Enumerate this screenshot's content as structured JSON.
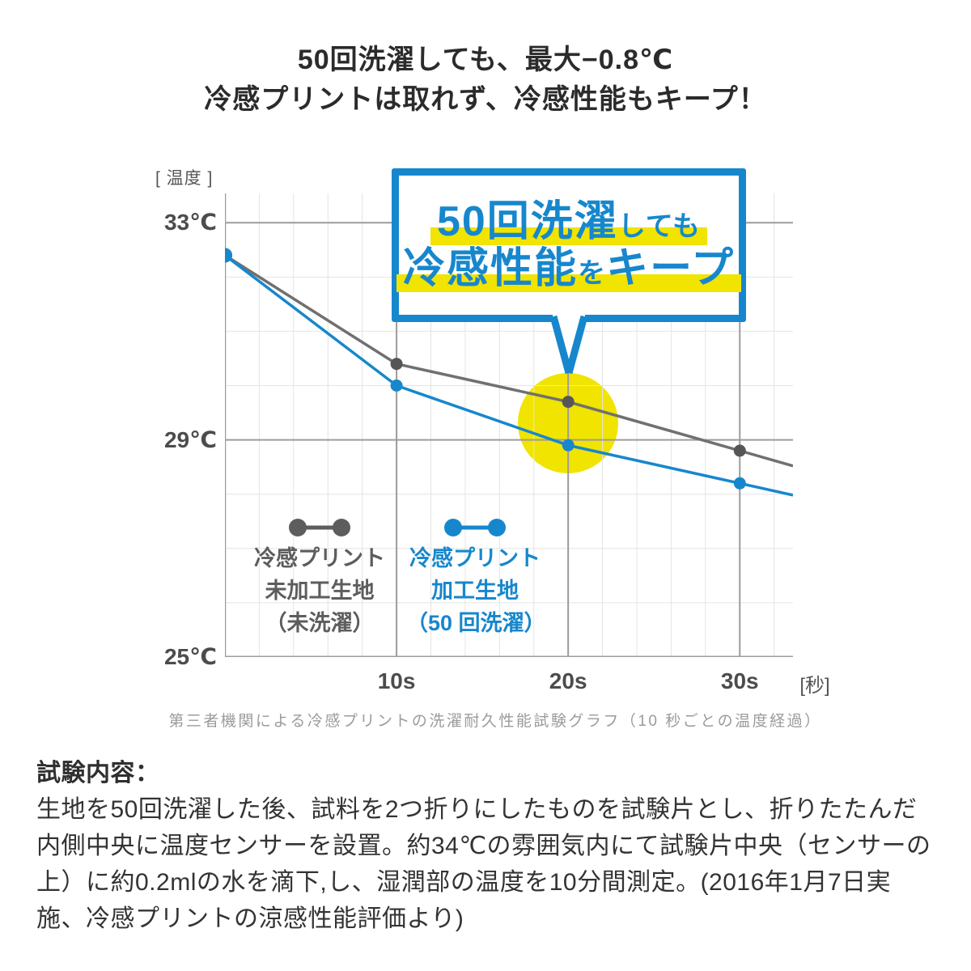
{
  "title": {
    "line1": "50回洗濯しても、最大−0.8℃",
    "line2": "冷感プリントは取れず、冷感性能もキープ！"
  },
  "callout": {
    "line1_big": "50回洗濯",
    "line1_small": "しても",
    "line2_big1": "冷感性能",
    "line2_small": "を",
    "line2_big2": "キープ"
  },
  "chart_data": {
    "type": "line",
    "y_unit_label": "[ 温度 ]",
    "x_unit_label": "[秒]",
    "x_range": [
      0,
      33.1
    ],
    "y_range": [
      25,
      33.54
    ],
    "x_minor_step": 2,
    "y_minor_step": 1,
    "x_ticks": [
      {
        "value": 10,
        "label": "10s"
      },
      {
        "value": 20,
        "label": "20s"
      },
      {
        "value": 30,
        "label": "30s"
      }
    ],
    "y_ticks": [
      {
        "value": 33,
        "label": "33℃"
      },
      {
        "value": 29,
        "label": "29℃"
      },
      {
        "value": 25,
        "label": "25℃"
      }
    ],
    "series": [
      {
        "name": "冷感プリント未加工生地（未洗濯）",
        "color": "#707070",
        "dot_color": "#565656",
        "x": [
          0,
          10,
          20,
          30
        ],
        "y": [
          32.4,
          30.4,
          29.7,
          28.8
        ],
        "extend_to_edge": true
      },
      {
        "name": "冷感プリント加工生地（50回洗濯）",
        "color": "#1787cd",
        "dot_color": "#1787cd",
        "x": [
          0,
          10,
          20,
          30
        ],
        "y": [
          32.4,
          30.0,
          28.9,
          28.2
        ],
        "extend_to_edge": true
      }
    ],
    "highlight_circle": {
      "x_value": 20,
      "y_value": 29.3,
      "radius_px": 62,
      "color": "#f0e400"
    },
    "legend": {
      "position": "inside-bottom-left",
      "items": [
        {
          "color": "#5d5d5d",
          "lines": [
            "冷感プリント",
            "未加工生地",
            "（未洗濯）"
          ]
        },
        {
          "color": "#1787cd",
          "lines": [
            "冷感プリント",
            "加工生地",
            "（50 回洗濯）"
          ]
        }
      ]
    },
    "caption": "第三者機関による冷感プリントの洗濯耐久性能試験グラフ（10 秒ごとの温度経過）",
    "grid": true,
    "max_difference_label": "−0.8℃"
  },
  "test_section": {
    "heading": "試験内容：",
    "body": "生地を50回洗濯した後、試料を2つ折りにしたものを試験片とし、折りたたんだ内側中央に温度センサーを設置。約34℃の雰囲気内にて試験片中央（センサーの上）に約0.2mlの水を滴下,し、湿潤部の温度を10分間測定。(2016年1月7日実施、冷感プリントの涼感性能評価より)"
  },
  "colors": {
    "accent_blue": "#1787cd",
    "highlight_yellow": "#f0e400",
    "line_gray": "#707070",
    "grid_minor": "#e4e4e4",
    "grid_major": "#9c9c9c",
    "text_dark": "#2b2b2b",
    "caption_gray": "#9b9b9b"
  }
}
